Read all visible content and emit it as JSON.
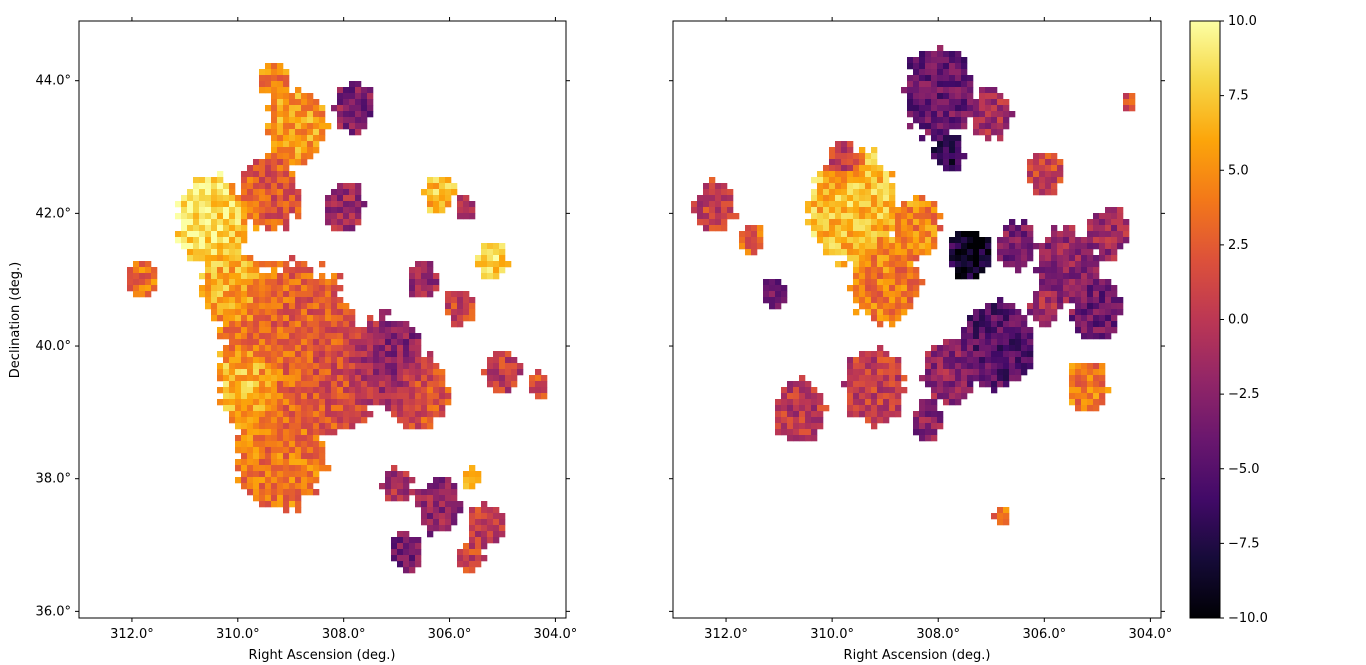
{
  "chart_data": [
    {
      "type": "heatmap",
      "panel": "left",
      "xlabel": "Right Ascension (deg.)",
      "ylabel": "Declination (deg.)",
      "xlim": [
        313.0,
        303.8
      ],
      "ylim": [
        35.9,
        44.9
      ],
      "x_ticks": [
        {
          "value": 312.0,
          "label": "312.0°"
        },
        {
          "value": 310.0,
          "label": "310.0°"
        },
        {
          "value": 308.0,
          "label": "308.0°"
        },
        {
          "value": 306.0,
          "label": "306.0°"
        },
        {
          "value": 304.0,
          "label": "304.0°"
        }
      ],
      "y_ticks": [
        {
          "value": 36.0,
          "label": "36.0°"
        },
        {
          "value": 38.0,
          "label": "38.0°"
        },
        {
          "value": 40.0,
          "label": "40.0°"
        },
        {
          "value": 42.0,
          "label": "42.0°"
        },
        {
          "value": 44.0,
          "label": "44.0°"
        }
      ],
      "colormap": "inferno",
      "vmin": -10.0,
      "vmax": 10.0,
      "regions": [
        {
          "ra": 309.0,
          "dec": 39.9,
          "r": 1.4,
          "value": 3.0
        },
        {
          "ra": 309.8,
          "dec": 39.4,
          "r": 0.6,
          "value": 9.0
        },
        {
          "ra": 308.3,
          "dec": 39.6,
          "r": 1.0,
          "value": 1.5
        },
        {
          "ra": 307.2,
          "dec": 39.8,
          "r": 0.7,
          "value": -3.5
        },
        {
          "ra": 306.6,
          "dec": 39.3,
          "r": 0.6,
          "value": 2.0
        },
        {
          "ra": 309.2,
          "dec": 38.4,
          "r": 0.9,
          "value": 4.0
        },
        {
          "ra": 310.1,
          "dec": 40.9,
          "r": 0.6,
          "value": 6.5
        },
        {
          "ra": 310.5,
          "dec": 41.9,
          "r": 0.7,
          "value": 8.5
        },
        {
          "ra": 309.4,
          "dec": 42.3,
          "r": 0.6,
          "value": 2.0
        },
        {
          "ra": 308.9,
          "dec": 43.3,
          "r": 0.6,
          "value": 5.5
        },
        {
          "ra": 307.8,
          "dec": 43.6,
          "r": 0.4,
          "value": -3.0
        },
        {
          "ra": 309.3,
          "dec": 44.0,
          "r": 0.3,
          "value": 4.5
        },
        {
          "ra": 308.0,
          "dec": 42.1,
          "r": 0.4,
          "value": -1.5
        },
        {
          "ra": 311.8,
          "dec": 41.0,
          "r": 0.3,
          "value": 3.5
        },
        {
          "ra": 306.2,
          "dec": 42.3,
          "r": 0.3,
          "value": 7.0
        },
        {
          "ra": 305.2,
          "dec": 41.3,
          "r": 0.3,
          "value": 8.0
        },
        {
          "ra": 305.8,
          "dec": 40.6,
          "r": 0.3,
          "value": 1.0
        },
        {
          "ra": 305.0,
          "dec": 39.6,
          "r": 0.35,
          "value": 0.5
        },
        {
          "ra": 304.3,
          "dec": 39.4,
          "r": 0.2,
          "value": 2.0
        },
        {
          "ra": 306.2,
          "dec": 37.6,
          "r": 0.45,
          "value": -2.0
        },
        {
          "ra": 305.3,
          "dec": 37.3,
          "r": 0.35,
          "value": 0.5
        },
        {
          "ra": 307.0,
          "dec": 37.9,
          "r": 0.3,
          "value": -1.0
        },
        {
          "ra": 306.8,
          "dec": 36.9,
          "r": 0.3,
          "value": -3.5
        },
        {
          "ra": 305.6,
          "dec": 36.8,
          "r": 0.25,
          "value": 1.0
        },
        {
          "ra": 305.6,
          "dec": 38.0,
          "r": 0.2,
          "value": 6.0
        },
        {
          "ra": 306.5,
          "dec": 41.0,
          "r": 0.3,
          "value": -1.5
        },
        {
          "ra": 305.7,
          "dec": 42.1,
          "r": 0.2,
          "value": -0.5
        }
      ]
    },
    {
      "type": "heatmap",
      "panel": "right",
      "xlabel": "Right Ascension (deg.)",
      "ylabel": "",
      "xlim": [
        313.0,
        303.8
      ],
      "ylim": [
        35.9,
        44.9
      ],
      "x_ticks": [
        {
          "value": 312.0,
          "label": "312.0°"
        },
        {
          "value": 310.0,
          "label": "310.0°"
        },
        {
          "value": 308.0,
          "label": "308.0°"
        },
        {
          "value": 306.0,
          "label": "306.0°"
        },
        {
          "value": 304.0,
          "label": "304.0°"
        }
      ],
      "y_ticks": [
        {
          "value": 36.0,
          "label": ""
        },
        {
          "value": 38.0,
          "label": ""
        },
        {
          "value": 40.0,
          "label": ""
        },
        {
          "value": 42.0,
          "label": ""
        },
        {
          "value": 44.0,
          "label": ""
        }
      ],
      "colormap": "inferno",
      "vmin": -10.0,
      "vmax": 10.0,
      "regions": [
        {
          "ra": 309.6,
          "dec": 42.1,
          "r": 0.9,
          "value": 7.0
        },
        {
          "ra": 309.0,
          "dec": 41.0,
          "r": 0.7,
          "value": 4.0
        },
        {
          "ra": 308.4,
          "dec": 41.8,
          "r": 0.5,
          "value": 4.5
        },
        {
          "ra": 307.4,
          "dec": 41.4,
          "r": 0.4,
          "value": -9.0
        },
        {
          "ra": 308.0,
          "dec": 43.8,
          "r": 0.7,
          "value": -4.0
        },
        {
          "ra": 307.0,
          "dec": 43.5,
          "r": 0.4,
          "value": -1.0
        },
        {
          "ra": 307.8,
          "dec": 42.9,
          "r": 0.3,
          "value": -7.0
        },
        {
          "ra": 306.5,
          "dec": 41.5,
          "r": 0.4,
          "value": -3.0
        },
        {
          "ra": 305.6,
          "dec": 41.2,
          "r": 0.6,
          "value": -2.0
        },
        {
          "ra": 305.0,
          "dec": 40.6,
          "r": 0.5,
          "value": -4.0
        },
        {
          "ra": 304.8,
          "dec": 41.7,
          "r": 0.4,
          "value": -1.5
        },
        {
          "ra": 306.9,
          "dec": 40.0,
          "r": 0.7,
          "value": -5.0
        },
        {
          "ra": 307.8,
          "dec": 39.6,
          "r": 0.5,
          "value": -2.0
        },
        {
          "ra": 305.2,
          "dec": 39.4,
          "r": 0.4,
          "value": 4.0
        },
        {
          "ra": 309.2,
          "dec": 39.4,
          "r": 0.6,
          "value": 0.5
        },
        {
          "ra": 310.6,
          "dec": 39.0,
          "r": 0.5,
          "value": 0.0
        },
        {
          "ra": 311.1,
          "dec": 40.8,
          "r": 0.25,
          "value": -4.0
        },
        {
          "ra": 312.2,
          "dec": 42.1,
          "r": 0.4,
          "value": 0.5
        },
        {
          "ra": 311.5,
          "dec": 41.6,
          "r": 0.25,
          "value": 3.0
        },
        {
          "ra": 306.0,
          "dec": 42.6,
          "r": 0.35,
          "value": 1.0
        },
        {
          "ra": 304.4,
          "dec": 43.7,
          "r": 0.15,
          "value": 2.0
        },
        {
          "ra": 306.8,
          "dec": 37.4,
          "r": 0.15,
          "value": 4.0
        },
        {
          "ra": 308.2,
          "dec": 38.9,
          "r": 0.3,
          "value": -2.5
        },
        {
          "ra": 309.8,
          "dec": 42.8,
          "r": 0.3,
          "value": -3.0
        },
        {
          "ra": 306.0,
          "dec": 40.6,
          "r": 0.3,
          "value": -1.0
        }
      ]
    }
  ],
  "colorbar": {
    "colormap": "inferno",
    "min": -10.0,
    "max": 10.0,
    "ticks": [
      {
        "value": 10.0,
        "label": "10.0"
      },
      {
        "value": 7.5,
        "label": "7.5"
      },
      {
        "value": 5.0,
        "label": "5.0"
      },
      {
        "value": 2.5,
        "label": "2.5"
      },
      {
        "value": 0.0,
        "label": "0.0"
      },
      {
        "value": -2.5,
        "label": "−2.5"
      },
      {
        "value": -5.0,
        "label": "−5.0"
      },
      {
        "value": -7.5,
        "label": "−7.5"
      },
      {
        "value": -10.0,
        "label": "−10.0"
      }
    ]
  }
}
